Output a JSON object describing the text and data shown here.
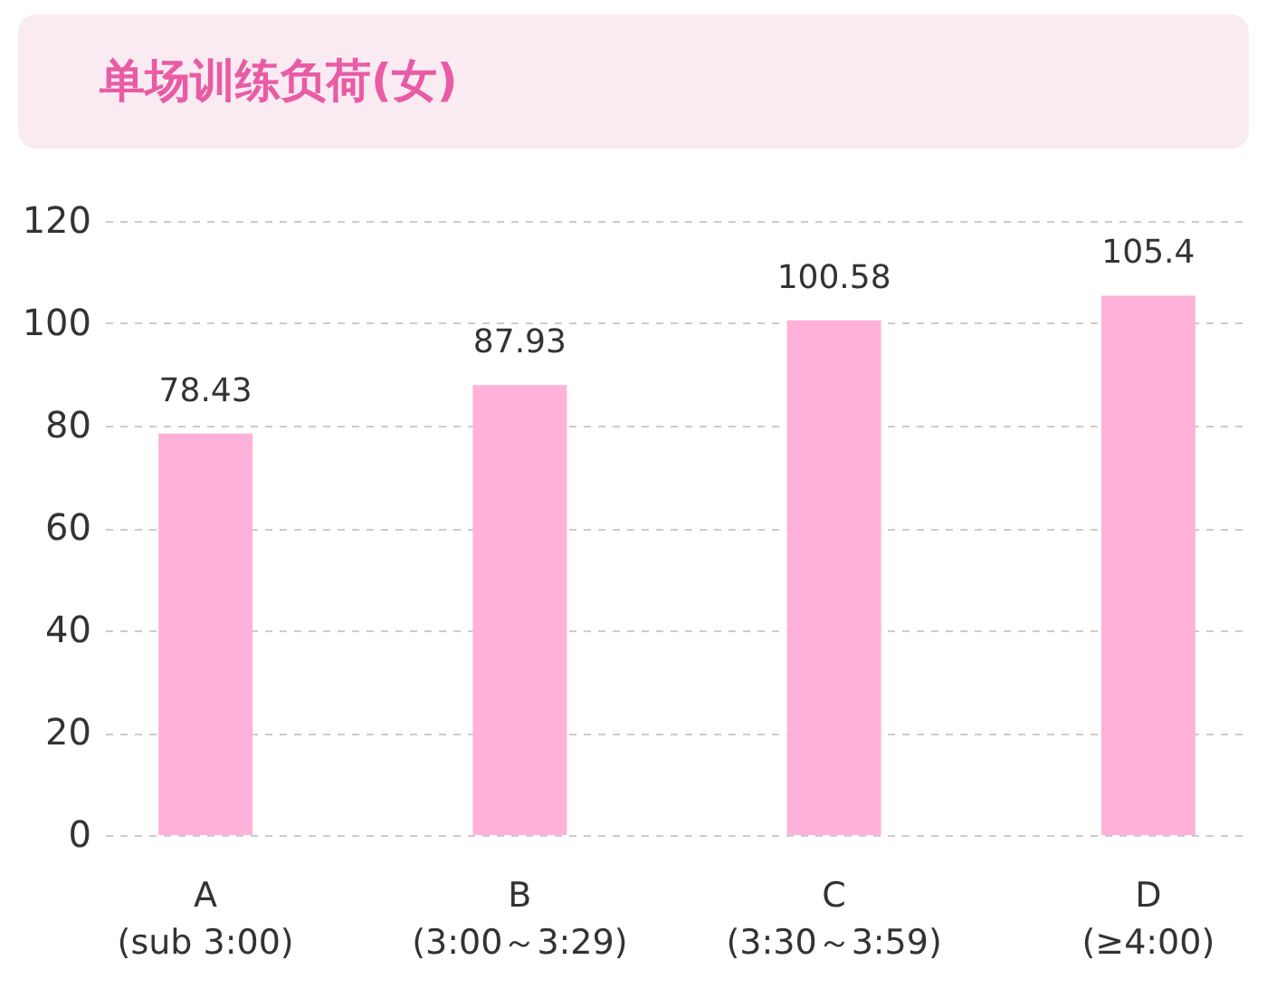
{
  "chart_data": {
    "type": "bar",
    "title": "单场训练负荷(女)",
    "categories": [
      "A\n(sub 3:00)",
      "B\n(3:00～3:29)",
      "C\n(3:30～3:59)",
      "D\n(≥4:00)"
    ],
    "values": [
      78.43,
      87.93,
      100.58,
      105.4
    ],
    "color": "#ffb1d9",
    "ylim": [
      0,
      120
    ],
    "yticks": [
      0,
      20,
      40,
      60,
      80,
      100,
      120
    ],
    "grid": "y",
    "data_labels": true
  }
}
